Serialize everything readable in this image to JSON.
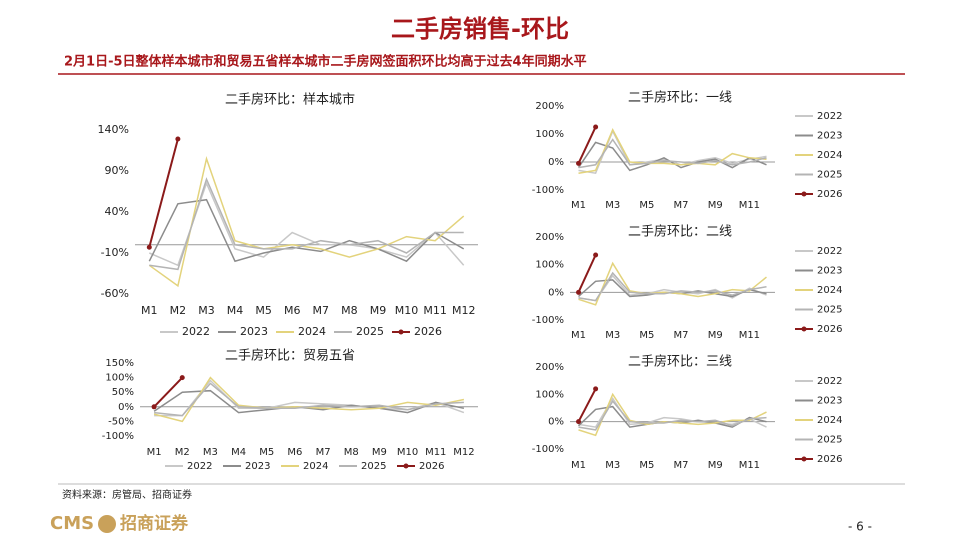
{
  "header": {
    "title": "二手房销售-环比",
    "subtitle": "2月1日-5日整体样本城市和贸易五省样本城市二手房网签面积环比均高于过去4年同期水平"
  },
  "footer": {
    "source": "资料来源：房管局、招商证券",
    "logo": "CMS",
    "logo_cn": "招商证券",
    "page": "- 6 -"
  },
  "chart_data": [
    {
      "type": "line",
      "title": "二手房环比：样本城市",
      "legend": "bottom",
      "categories": [
        "M1",
        "M2",
        "M3",
        "M4",
        "M5",
        "M6",
        "M7",
        "M8",
        "M9",
        "M10",
        "M11",
        "M12"
      ],
      "ylim": [
        -60,
        140
      ],
      "yticks": [
        {
          "value": -60,
          "label": "-60%"
        },
        {
          "value": -10,
          "label": "-10%"
        },
        {
          "value": 40,
          "label": "40%"
        },
        {
          "value": 90,
          "label": "90%"
        },
        {
          "value": 140,
          "label": "140%"
        }
      ],
      "series": [
        {
          "name": "2022",
          "color": "#c8c8c8",
          "values": [
            -10,
            -25,
            75,
            -5,
            -15,
            15,
            0,
            0,
            -5,
            -15,
            15,
            -25
          ]
        },
        {
          "name": "2023",
          "color": "#8c8c8c",
          "values": [
            -20,
            50,
            55,
            -20,
            -10,
            -3,
            -8,
            5,
            -5,
            -20,
            15,
            -5
          ]
        },
        {
          "name": "2024",
          "color": "#e3d37c",
          "values": [
            -25,
            -50,
            105,
            5,
            -5,
            0,
            -5,
            -15,
            -5,
            10,
            5,
            35
          ]
        },
        {
          "name": "2025",
          "color": "#b4b4b4",
          "values": [
            -25,
            -30,
            80,
            0,
            -5,
            -5,
            5,
            0,
            5,
            -10,
            15,
            15
          ]
        },
        {
          "name": "2026",
          "color": "#8b1a1a",
          "marker": true,
          "values": [
            -3,
            129,
            null,
            null,
            null,
            null,
            null,
            null,
            null,
            null,
            null,
            null
          ]
        }
      ]
    },
    {
      "type": "line",
      "title": "二手房环比：一线",
      "legend": "right",
      "categories": [
        "M1",
        null,
        "M3",
        null,
        "M5",
        null,
        "M7",
        null,
        "M9",
        null,
        "M11",
        null
      ],
      "ylim": [
        -100,
        200
      ],
      "yticks": [
        {
          "value": -100,
          "label": "-100%"
        },
        {
          "value": 0,
          "label": "0%"
        },
        {
          "value": 100,
          "label": "100%"
        },
        {
          "value": 200,
          "label": "200%"
        }
      ],
      "series": [
        {
          "name": "2022",
          "color": "#c8c8c8",
          "values": [
            -30,
            -40,
            110,
            -10,
            0,
            10,
            -10,
            5,
            15,
            -5,
            10,
            20
          ]
        },
        {
          "name": "2023",
          "color": "#8c8c8c",
          "values": [
            -20,
            70,
            50,
            -30,
            -10,
            15,
            -20,
            0,
            10,
            -20,
            15,
            -10
          ]
        },
        {
          "name": "2024",
          "color": "#e3d37c",
          "values": [
            -40,
            -30,
            115,
            0,
            -5,
            -5,
            -10,
            -5,
            -10,
            30,
            15,
            10
          ]
        },
        {
          "name": "2025",
          "color": "#b4b4b4",
          "values": [
            -20,
            -10,
            80,
            -10,
            -5,
            5,
            0,
            -5,
            5,
            -10,
            0,
            15
          ]
        },
        {
          "name": "2026",
          "color": "#8b1a1a",
          "marker": true,
          "values": [
            -5,
            125,
            null,
            null,
            null,
            null,
            null,
            null,
            null,
            null,
            null,
            null
          ]
        }
      ]
    },
    {
      "type": "line",
      "title": "二手房环比：二线",
      "legend": "right",
      "categories": [
        "M1",
        null,
        "M3",
        null,
        "M5",
        null,
        "M7",
        null,
        "M9",
        null,
        "M11",
        null
      ],
      "ylim": [
        -100,
        200
      ],
      "yticks": [
        {
          "value": -100,
          "label": "-100%"
        },
        {
          "value": 0,
          "label": "0%"
        },
        {
          "value": 100,
          "label": "100%"
        },
        {
          "value": 200,
          "label": "200%"
        }
      ],
      "series": [
        {
          "name": "2022",
          "color": "#c8c8c8",
          "values": [
            -20,
            -30,
            60,
            -10,
            -5,
            10,
            0,
            -5,
            10,
            -20,
            15,
            -10
          ]
        },
        {
          "name": "2023",
          "color": "#8c8c8c",
          "values": [
            -15,
            40,
            45,
            -15,
            -10,
            0,
            -5,
            5,
            -5,
            -15,
            10,
            -5
          ]
        },
        {
          "name": "2024",
          "color": "#e3d37c",
          "values": [
            -25,
            -45,
            105,
            5,
            -5,
            0,
            -5,
            -15,
            -5,
            10,
            5,
            55
          ]
        },
        {
          "name": "2025",
          "color": "#b4b4b4",
          "values": [
            -20,
            -30,
            70,
            0,
            -5,
            -5,
            5,
            0,
            5,
            -10,
            10,
            20
          ]
        },
        {
          "name": "2026",
          "color": "#8b1a1a",
          "marker": true,
          "values": [
            0,
            135,
            null,
            null,
            null,
            null,
            null,
            null,
            null,
            null,
            null,
            null
          ]
        }
      ]
    },
    {
      "type": "line",
      "title": "二手房环比：贸易五省",
      "legend": "bottom",
      "categories": [
        "M1",
        "M2",
        "M3",
        "M4",
        "M5",
        "M6",
        "M7",
        "M8",
        "M9",
        "M10",
        "M11",
        "M12"
      ],
      "ylim": [
        -100,
        150
      ],
      "yticks": [
        {
          "value": -100,
          "label": "-100%"
        },
        {
          "value": -50,
          "label": "-50%"
        },
        {
          "value": 0,
          "label": "0%"
        },
        {
          "value": 50,
          "label": "50%"
        },
        {
          "value": 100,
          "label": "100%"
        },
        {
          "value": 150,
          "label": "150%"
        }
      ],
      "series": [
        {
          "name": "2022",
          "color": "#c8c8c8",
          "values": [
            -30,
            -30,
            90,
            -5,
            -5,
            15,
            10,
            5,
            -5,
            -10,
            15,
            -20
          ]
        },
        {
          "name": "2023",
          "color": "#8c8c8c",
          "values": [
            -15,
            50,
            55,
            -20,
            -10,
            0,
            -10,
            5,
            -5,
            -20,
            15,
            -5
          ]
        },
        {
          "name": "2024",
          "color": "#e3d37c",
          "values": [
            -25,
            -50,
            100,
            5,
            -5,
            0,
            -5,
            -10,
            -5,
            15,
            5,
            25
          ]
        },
        {
          "name": "2025",
          "color": "#b4b4b4",
          "values": [
            -20,
            -30,
            80,
            0,
            -5,
            -5,
            5,
            0,
            5,
            -10,
            10,
            15
          ]
        },
        {
          "name": "2026",
          "color": "#8b1a1a",
          "marker": true,
          "values": [
            0,
            100,
            null,
            null,
            null,
            null,
            null,
            null,
            null,
            null,
            null,
            null
          ]
        }
      ]
    },
    {
      "type": "line",
      "title": "二手房环比：三线",
      "legend": "right",
      "categories": [
        "M1",
        null,
        "M3",
        null,
        "M5",
        null,
        "M7",
        null,
        "M9",
        null,
        "M11",
        null
      ],
      "ylim": [
        -100,
        200
      ],
      "yticks": [
        {
          "value": -100,
          "label": "-100%"
        },
        {
          "value": 0,
          "label": "0%"
        },
        {
          "value": 100,
          "label": "100%"
        },
        {
          "value": 200,
          "label": "200%"
        }
      ],
      "series": [
        {
          "name": "2022",
          "color": "#c8c8c8",
          "values": [
            -10,
            -20,
            85,
            -10,
            -5,
            15,
            10,
            0,
            -5,
            -10,
            10,
            -20
          ]
        },
        {
          "name": "2023",
          "color": "#8c8c8c",
          "values": [
            -15,
            45,
            55,
            -20,
            -10,
            0,
            -5,
            5,
            -5,
            -20,
            15,
            0
          ]
        },
        {
          "name": "2024",
          "color": "#e3d37c",
          "values": [
            -30,
            -50,
            100,
            5,
            -10,
            0,
            -5,
            -10,
            -5,
            5,
            5,
            35
          ]
        },
        {
          "name": "2025",
          "color": "#b4b4b4",
          "values": [
            -20,
            -30,
            75,
            0,
            -5,
            -5,
            5,
            0,
            5,
            -15,
            10,
            15
          ]
        },
        {
          "name": "2026",
          "color": "#8b1a1a",
          "marker": true,
          "values": [
            0,
            120,
            null,
            null,
            null,
            null,
            null,
            null,
            null,
            null,
            null,
            null
          ]
        }
      ]
    }
  ]
}
